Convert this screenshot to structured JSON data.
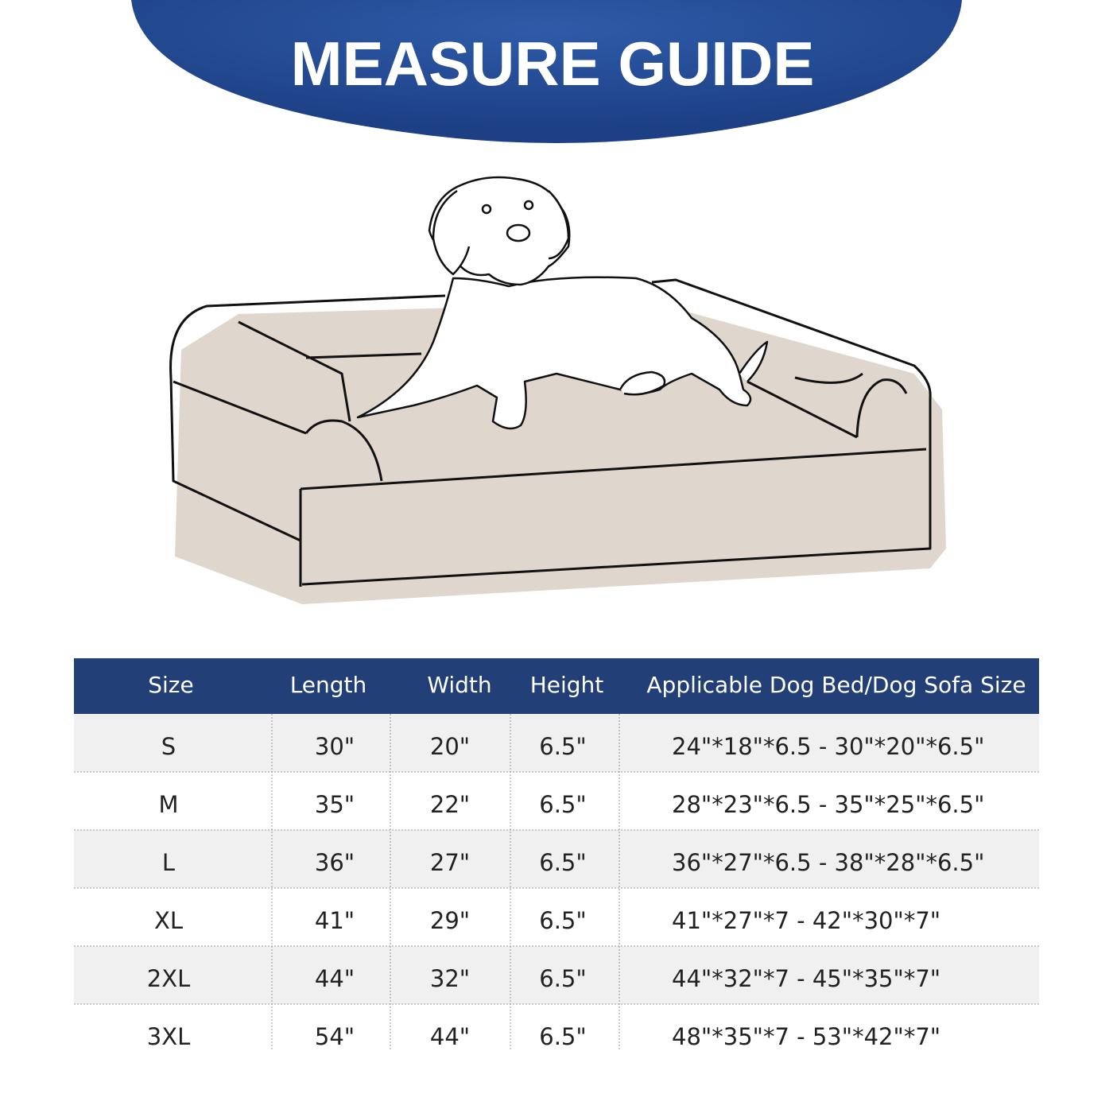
{
  "header": {
    "title": "MEASURE GUIDE"
  },
  "table": {
    "columns": [
      "Size",
      "Length",
      "Width",
      "Height",
      "Applicable Dog Bed/Dog Sofa Size"
    ],
    "rows": [
      [
        "S",
        "30\"",
        "20\"",
        "6.5\"",
        "24\"*18\"*6.5 - 30\"*20\"*6.5\""
      ],
      [
        "M",
        "35\"",
        "22\"",
        "6.5\"",
        "28\"*23\"*6.5 - 35\"*25\"*6.5\""
      ],
      [
        "L",
        "36\"",
        "27\"",
        "6.5\"",
        "36\"*27\"*6.5 - 38\"*28\"*6.5\""
      ],
      [
        "XL",
        "41\"",
        "29\"",
        "6.5\"",
        "41\"*27\"*7 - 42\"*30\"*7\""
      ],
      [
        "2XL",
        "44\"",
        "32\"",
        "6.5\"",
        "44\"*32\"*7 - 45\"*35\"*7\""
      ],
      [
        "3XL",
        "54\"",
        "44\"",
        "6.5\"",
        "48\"*35\"*7 - 53\"*42\"*7\""
      ]
    ]
  }
}
